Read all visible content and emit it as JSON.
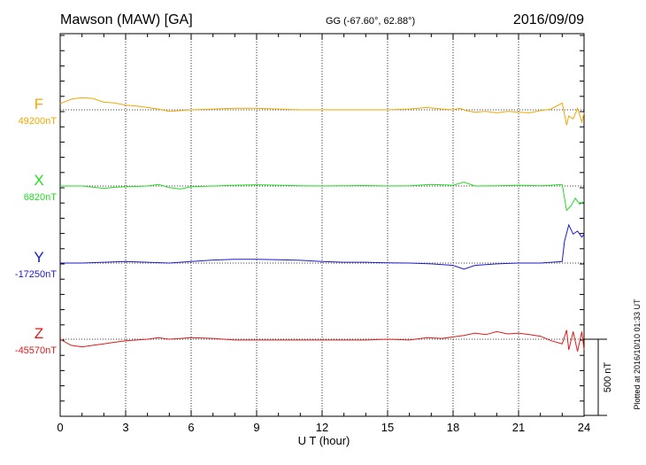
{
  "header": {
    "station": "Mawson (MAW)  [GA]",
    "coords": "GG (-67.60°,  62.88°)",
    "date": "2016/09/09"
  },
  "footer_note": "Plotted at 2016/10/10 01:33 UT",
  "chart_data": {
    "type": "line",
    "xlabel": "U T (hour)",
    "xlim": [
      0,
      24
    ],
    "xticks": [
      "0",
      "3",
      "6",
      "9",
      "12",
      "15",
      "18",
      "21",
      "24"
    ],
    "scale_bar": {
      "label": "500 nT",
      "value_nT": 500
    },
    "series": [
      {
        "name": "F",
        "baseline_label": "49200nT",
        "baseline_nT": 49200,
        "color": "#f0a800",
        "x": [
          0,
          0.5,
          1,
          1.5,
          2,
          2.5,
          3,
          3.5,
          4,
          4.5,
          5,
          5.5,
          6,
          7,
          8,
          9,
          10,
          11,
          12,
          13,
          14,
          15,
          16,
          16.8,
          17.5,
          18,
          18.3,
          18.6,
          19,
          19.5,
          20,
          20.5,
          21,
          21.5,
          22,
          22.5,
          23,
          23.2,
          23.3,
          23.5,
          23.7,
          23.9,
          24
        ],
        "values": [
          49240,
          49270,
          49280,
          49275,
          49250,
          49245,
          49230,
          49225,
          49215,
          49205,
          49190,
          49195,
          49200,
          49205,
          49210,
          49210,
          49205,
          49200,
          49200,
          49200,
          49200,
          49200,
          49205,
          49215,
          49205,
          49200,
          49210,
          49195,
          49185,
          49190,
          49180,
          49190,
          49185,
          49180,
          49195,
          49205,
          49245,
          49100,
          49160,
          49140,
          49210,
          49120,
          49180
        ]
      },
      {
        "name": "X",
        "baseline_label": "6820nT",
        "baseline_nT": 6820,
        "color": "#22dd22",
        "x": [
          0,
          1,
          2,
          2.5,
          3,
          4,
          4.5,
          5,
          5.5,
          6,
          7,
          8,
          9,
          10,
          11,
          12,
          13,
          14,
          15,
          16,
          17,
          18,
          18.5,
          19,
          20,
          21,
          22,
          22.5,
          23,
          23.2,
          23.4,
          23.6,
          23.8,
          24
        ],
        "values": [
          6820,
          6820,
          6805,
          6812,
          6815,
          6820,
          6830,
          6810,
          6800,
          6815,
          6820,
          6825,
          6828,
          6825,
          6822,
          6820,
          6822,
          6823,
          6820,
          6822,
          6830,
          6825,
          6845,
          6820,
          6822,
          6825,
          6822,
          6825,
          6830,
          6660,
          6690,
          6740,
          6700,
          6720
        ]
      },
      {
        "name": "Y",
        "baseline_label": "-17250nT",
        "baseline_nT": -17250,
        "color": "#1a1ad0",
        "x": [
          0,
          1,
          2,
          3,
          4,
          5,
          6,
          7,
          8,
          9,
          10,
          11,
          12,
          13,
          14,
          15,
          16,
          17,
          18,
          18.5,
          19,
          20,
          21,
          22,
          22.5,
          23,
          23.1,
          23.3,
          23.5,
          23.7,
          23.9,
          24
        ],
        "values": [
          -17250,
          -17250,
          -17245,
          -17240,
          -17245,
          -17250,
          -17240,
          -17230,
          -17225,
          -17225,
          -17228,
          -17232,
          -17240,
          -17245,
          -17245,
          -17248,
          -17250,
          -17255,
          -17265,
          -17290,
          -17265,
          -17255,
          -17250,
          -17250,
          -17245,
          -17240,
          -17110,
          -17000,
          -17060,
          -17040,
          -17080,
          -17060
        ]
      },
      {
        "name": "Z",
        "baseline_label": "-45570nT",
        "baseline_nT": -45570,
        "color": "#e01818",
        "x": [
          0,
          0.5,
          1,
          1.5,
          2,
          2.5,
          3,
          3.5,
          4,
          4.5,
          5,
          6,
          7,
          8,
          9,
          10,
          11,
          12,
          13,
          14,
          15,
          16,
          16.8,
          17.5,
          18,
          18.5,
          19,
          19.5,
          20,
          20.5,
          21,
          21.5,
          22,
          22.5,
          23,
          23.2,
          23.3,
          23.5,
          23.7,
          23.9,
          24
        ],
        "values": [
          -45570,
          -45610,
          -45620,
          -45610,
          -45600,
          -45590,
          -45580,
          -45575,
          -45570,
          -45560,
          -45570,
          -45560,
          -45565,
          -45575,
          -45575,
          -45575,
          -45575,
          -45575,
          -45575,
          -45575,
          -45570,
          -45575,
          -45560,
          -45565,
          -45555,
          -45545,
          -45530,
          -45540,
          -45520,
          -45535,
          -45530,
          -45540,
          -45550,
          -45580,
          -45600,
          -45510,
          -45640,
          -45520,
          -45650,
          -45520,
          -45640
        ]
      }
    ]
  }
}
